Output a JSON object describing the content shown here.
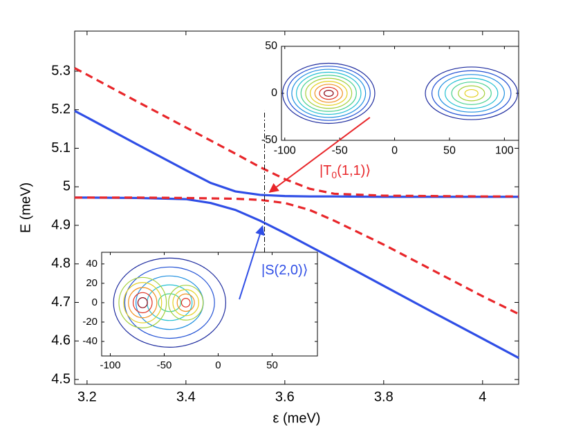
{
  "chart_data": [
    {
      "type": "line",
      "xlabel": "ε (meV)",
      "ylabel": "E (meV)",
      "x": [
        3.175,
        3.2,
        3.3,
        3.4,
        3.45,
        3.5,
        3.55,
        3.6,
        3.65,
        3.7,
        3.8,
        3.9,
        4.0,
        4.073
      ],
      "series": [
        {
          "color": "#2f4ee6",
          "dash": false,
          "values": [
            5.197,
            5.18,
            5.111,
            5.043,
            5.01,
            4.988,
            4.979,
            4.976,
            4.975,
            4.975,
            4.974,
            4.974,
            4.974,
            4.974
          ]
        },
        {
          "color": "#2f4ee6",
          "dash": false,
          "values": [
            4.972,
            4.972,
            4.971,
            4.968,
            4.958,
            4.94,
            4.912,
            4.88,
            4.846,
            4.812,
            4.743,
            4.674,
            4.606,
            4.556
          ]
        },
        {
          "color": "#e8262a",
          "dash": true,
          "values": [
            5.308,
            5.291,
            5.222,
            5.154,
            5.12,
            5.086,
            5.051,
            5.02,
            4.995,
            4.982,
            4.977,
            4.976,
            4.975,
            4.975
          ]
        },
        {
          "color": "#e8262a",
          "dash": true,
          "values": [
            4.972,
            4.972,
            4.972,
            4.971,
            4.97,
            4.969,
            4.966,
            4.958,
            4.94,
            4.912,
            4.85,
            4.783,
            4.716,
            4.67
          ]
        }
      ],
      "vline": {
        "x": 3.559,
        "y": [
          4.83,
          5.198
        ]
      },
      "annotations": [
        {
          "label": [
            "|T",
            "0",
            "(1,1)⟩"
          ],
          "color": "#e8262a",
          "xy": [
            3.569,
            4.986
          ],
          "xytail": [
            3.772,
            5.18
          ]
        },
        {
          "label": [
            "|S(2,0)⟩"
          ],
          "color": "#2f4ee6",
          "xy": [
            3.555,
            4.898
          ],
          "xytail": [
            3.508,
            4.708
          ]
        }
      ],
      "xlim": [
        3.175,
        4.073
      ],
      "ylim": [
        4.4875,
        5.404
      ],
      "xticks": [
        3.2,
        3.4,
        3.6,
        3.8,
        4
      ],
      "yticks": [
        4.5,
        4.6,
        4.7,
        4.8,
        4.9,
        5,
        5.1,
        5.2,
        5.3
      ]
    },
    {
      "type": "contour",
      "colormap": [
        "#1c2a9e",
        "#2050d4",
        "#1c8ee0",
        "#22c0d2",
        "#44d08e",
        "#a4d03c",
        "#e4d020",
        "#f09020",
        "#e03020",
        "#8a0010"
      ],
      "lobes": [
        {
          "cx": -60,
          "cy": 0,
          "rx": 42,
          "ry": 32,
          "levels": [
            0,
            9
          ]
        },
        {
          "cx": 70,
          "cy": 0,
          "rx": 42,
          "ry": 28,
          "levels": [
            0,
            6
          ]
        }
      ],
      "xlim": [
        -103,
        113
      ],
      "ylim": [
        -50,
        50
      ],
      "xticks": [
        -100,
        -50,
        0,
        50,
        100
      ],
      "yticks": [
        -50,
        0,
        50
      ]
    },
    {
      "type": "contour",
      "colormap": [
        "#1c2a9e",
        "#2050d4",
        "#1c8ee0",
        "#22c0d2",
        "#44d08e",
        "#a4d03c",
        "#e4d020",
        "#f09020",
        "#e03020",
        "#8a0010"
      ],
      "lobes": [
        {
          "cx": -45,
          "cy": 0,
          "rx": 52,
          "ry": 46,
          "levels": [
            0,
            4
          ]
        },
        {
          "cx": -70,
          "cy": 0,
          "rx": 22,
          "ry": 26,
          "levels": [
            5,
            9
          ]
        },
        {
          "cx": -30,
          "cy": 0,
          "rx": 16,
          "ry": 18,
          "levels": [
            5,
            8
          ]
        }
      ],
      "xlim": [
        -108,
        92
      ],
      "ylim": [
        -55,
        52
      ],
      "xticks": [
        -100,
        -50,
        0,
        50
      ],
      "yticks": [
        -40,
        -20,
        0,
        20,
        40
      ]
    }
  ]
}
